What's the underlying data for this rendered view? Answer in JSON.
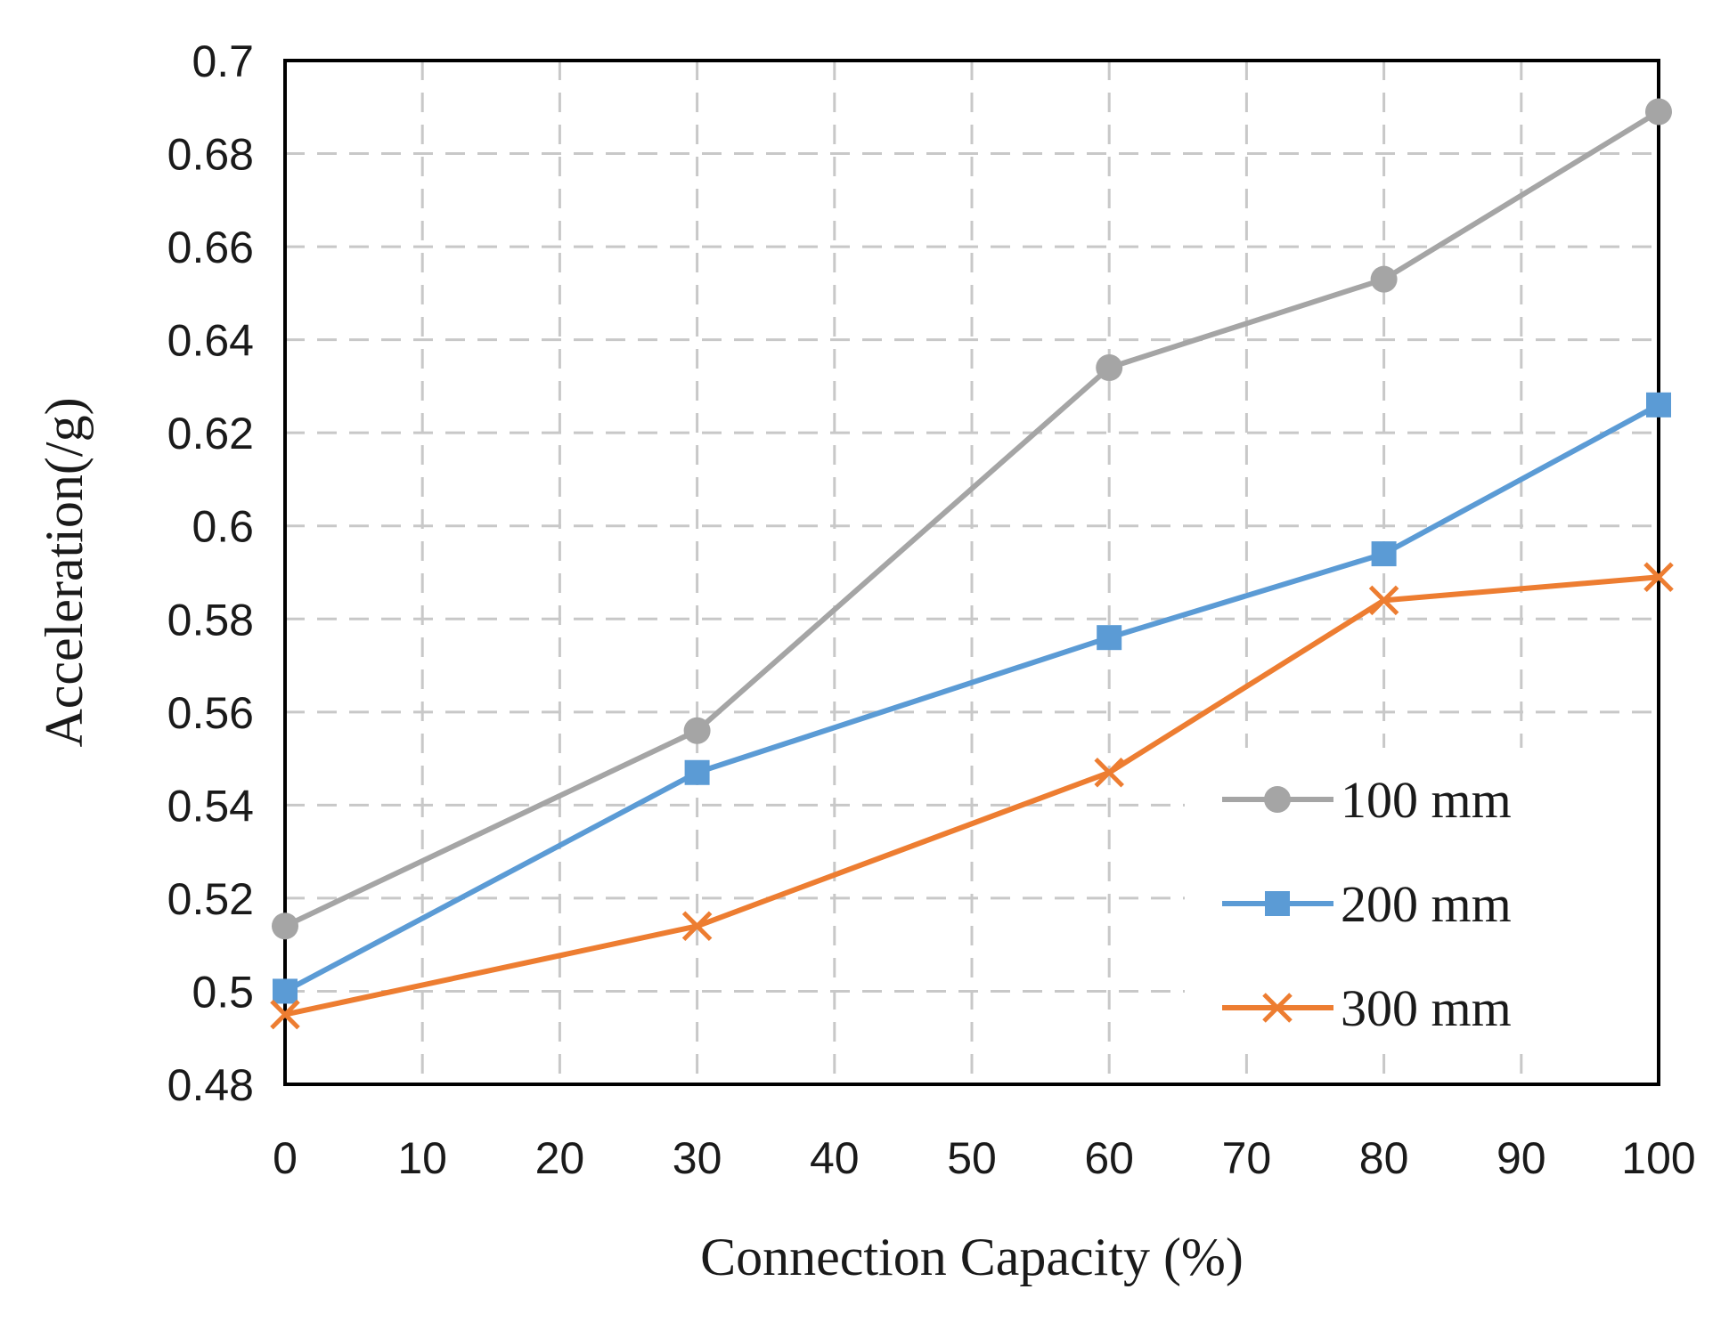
{
  "chart_data": {
    "type": "line",
    "title": "",
    "xlabel": "Connection Capacity (%)",
    "ylabel": "Acceleration(/g)",
    "x": [
      0,
      30,
      60,
      80,
      100
    ],
    "xlim": [
      0,
      100
    ],
    "xticks": [
      0,
      10,
      20,
      30,
      40,
      50,
      60,
      70,
      80,
      90,
      100
    ],
    "ylim": [
      0.48,
      0.7
    ],
    "yticks": [
      0.48,
      0.5,
      0.52,
      0.54,
      0.56,
      0.58,
      0.6,
      0.62,
      0.64,
      0.66,
      0.68,
      0.7
    ],
    "ytick_labels": [
      "0.48",
      "0.5",
      "0.52",
      "0.54",
      "0.56",
      "0.58",
      "0.6",
      "0.62",
      "0.64",
      "0.66",
      "0.68",
      "0.7"
    ],
    "grid": true,
    "legend_position": "bottom-right",
    "series": [
      {
        "name": "100 mm",
        "values": [
          0.514,
          0.556,
          0.634,
          0.653,
          0.689
        ],
        "color": "#a5a5a5",
        "marker": "circle"
      },
      {
        "name": "200 mm",
        "values": [
          0.5,
          0.547,
          0.576,
          0.594,
          0.626
        ],
        "color": "#5b9bd5",
        "marker": "square"
      },
      {
        "name": "300 mm",
        "values": [
          0.495,
          0.514,
          0.547,
          0.584,
          0.589
        ],
        "color": "#ed7d31",
        "marker": "x"
      }
    ]
  }
}
